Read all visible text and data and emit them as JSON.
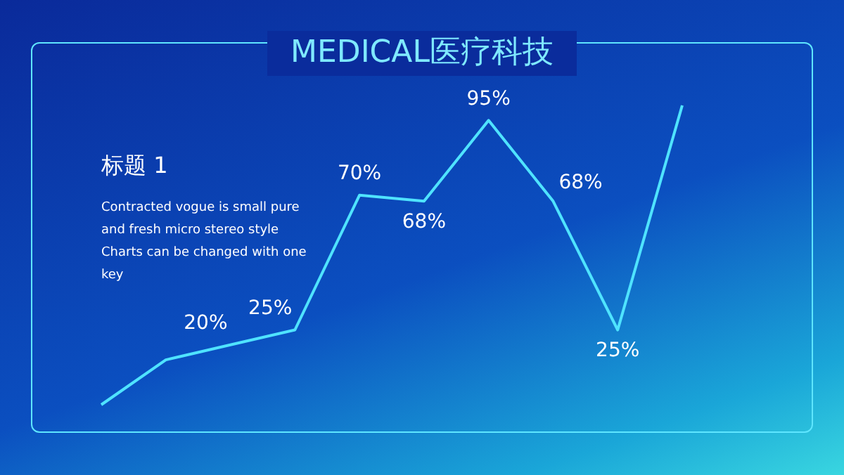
{
  "chart_data": {
    "type": "line",
    "title": "MEDICAL医疗科技",
    "annotations": [
      "标题 1",
      "Contracted vogue is small pure and fresh micro stereo style Charts can be changed with one key"
    ],
    "categories": [
      null,
      null,
      null,
      null,
      null,
      null,
      null,
      null,
      null,
      null
    ],
    "series": [
      {
        "color": "#4fe3ff",
        "values": [
          0,
          15,
          20,
          25,
          70,
          68,
          95,
          68,
          25,
          100
        ],
        "value_labels": [
          null,
          null,
          "20%",
          "25%",
          "70%",
          "68%",
          "95%",
          "68%",
          "25%",
          null
        ]
      }
    ]
  }
}
